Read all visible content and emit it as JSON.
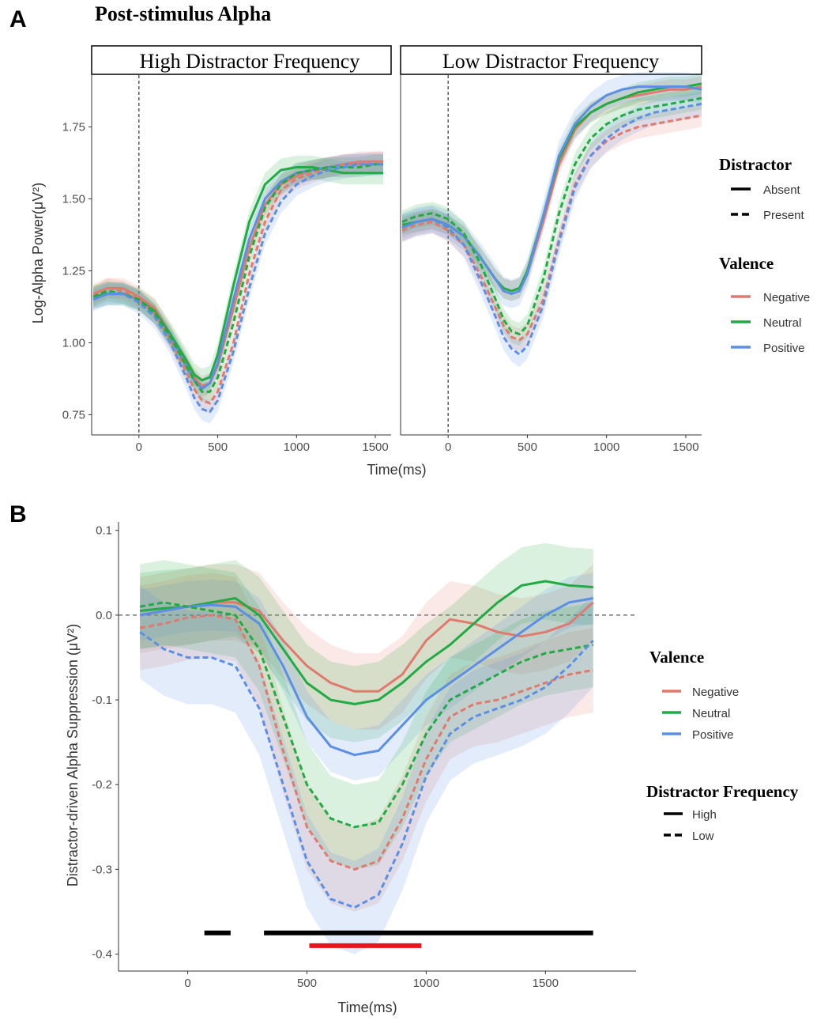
{
  "panel_a": {
    "letter": "A",
    "title": "Post-stimulus Alpha",
    "ylabel": "Log-Alpha Power(μV²)",
    "xlabel": "Time(ms)",
    "facets": [
      "High Distractor Frequency",
      "Low Distractor Frequency"
    ]
  },
  "panel_b": {
    "letter": "B",
    "ylabel": "Distractor-driven Alpha Suppression (μV²)",
    "xlabel": "Time(ms)"
  },
  "legend_a": {
    "distractor_title": "Distractor",
    "distractor_items": [
      "Absent",
      "Present"
    ],
    "valence_title": "Valence",
    "valence_items": [
      "Negative",
      "Neutral",
      "Positive"
    ]
  },
  "legend_b": {
    "valence_title": "Valence",
    "valence_items": [
      "Negative",
      "Neutral",
      "Positive"
    ],
    "freq_title": "Distractor Frequency",
    "freq_items": [
      "High",
      "Low"
    ]
  },
  "colors": {
    "Negative": "#e07a6c",
    "Neutral": "#22aa44",
    "Positive": "#5b8fe6",
    "sig_black": "#000000",
    "sig_red": "#e8151c"
  },
  "chart_data": [
    {
      "type": "line",
      "panel": "A",
      "facet": "High Distractor Frequency",
      "xlim": [
        -300,
        1600
      ],
      "ylim": [
        0.68,
        1.93
      ],
      "xticks": [
        0,
        500,
        1000,
        1500
      ],
      "xtick_labels": [
        "0",
        "500",
        "1000",
        "1500"
      ],
      "yticks": [
        0.75,
        1.0,
        1.25,
        1.5,
        1.75
      ],
      "ytick_labels": [
        "0.75",
        "1.00",
        "1.25",
        "1.50",
        "1.75"
      ],
      "x": [
        -290,
        -200,
        -100,
        0,
        100,
        200,
        300,
        350,
        400,
        450,
        500,
        600,
        700,
        800,
        900,
        1000,
        1100,
        1200,
        1300,
        1400,
        1500,
        1550
      ],
      "series": [
        {
          "name": "Negative",
          "distractor": "Absent",
          "band": 0.035,
          "values": [
            1.17,
            1.19,
            1.19,
            1.16,
            1.12,
            1.03,
            0.93,
            0.88,
            0.85,
            0.86,
            0.92,
            1.12,
            1.33,
            1.48,
            1.55,
            1.58,
            1.6,
            1.61,
            1.62,
            1.63,
            1.63,
            1.63
          ]
        },
        {
          "name": "Neutral",
          "distractor": "Absent",
          "band": 0.04,
          "values": [
            1.16,
            1.17,
            1.17,
            1.15,
            1.11,
            1.03,
            0.94,
            0.89,
            0.87,
            0.88,
            0.96,
            1.2,
            1.42,
            1.55,
            1.6,
            1.61,
            1.61,
            1.6,
            1.59,
            1.59,
            1.59,
            1.59
          ]
        },
        {
          "name": "Positive",
          "distractor": "Absent",
          "band": 0.035,
          "values": [
            1.15,
            1.17,
            1.17,
            1.15,
            1.1,
            1.02,
            0.92,
            0.87,
            0.84,
            0.86,
            0.93,
            1.15,
            1.36,
            1.5,
            1.56,
            1.59,
            1.6,
            1.61,
            1.62,
            1.62,
            1.62,
            1.62
          ]
        },
        {
          "name": "Negative",
          "distractor": "Present",
          "band": 0.035,
          "values": [
            1.16,
            1.19,
            1.18,
            1.15,
            1.1,
            1.01,
            0.9,
            0.84,
            0.8,
            0.79,
            0.83,
            1.0,
            1.24,
            1.42,
            1.53,
            1.57,
            1.59,
            1.61,
            1.62,
            1.62,
            1.63,
            1.63
          ]
        },
        {
          "name": "Neutral",
          "distractor": "Present",
          "band": 0.035,
          "values": [
            1.16,
            1.18,
            1.17,
            1.15,
            1.1,
            1.02,
            0.92,
            0.87,
            0.83,
            0.83,
            0.88,
            1.07,
            1.3,
            1.47,
            1.55,
            1.59,
            1.6,
            1.61,
            1.61,
            1.61,
            1.62,
            1.62
          ]
        },
        {
          "name": "Positive",
          "distractor": "Present",
          "band": 0.04,
          "values": [
            1.15,
            1.17,
            1.17,
            1.14,
            1.09,
            1.0,
            0.88,
            0.81,
            0.77,
            0.76,
            0.8,
            0.97,
            1.19,
            1.38,
            1.49,
            1.55,
            1.58,
            1.6,
            1.61,
            1.62,
            1.62,
            1.62
          ]
        }
      ]
    },
    {
      "type": "line",
      "panel": "A",
      "facet": "Low Distractor Frequency",
      "xlim": [
        -300,
        1600
      ],
      "ylim": [
        0.68,
        1.93
      ],
      "xticks": [
        0,
        500,
        1000,
        1500
      ],
      "xtick_labels": [
        "0",
        "500",
        "1000",
        "1500"
      ],
      "x": [
        -290,
        -200,
        -100,
        0,
        100,
        200,
        300,
        350,
        400,
        450,
        500,
        600,
        700,
        800,
        900,
        1000,
        1100,
        1200,
        1300,
        1400,
        1500,
        1600
      ],
      "series": [
        {
          "name": "Negative",
          "distractor": "Absent",
          "band": 0.035,
          "values": [
            1.4,
            1.42,
            1.43,
            1.41,
            1.37,
            1.3,
            1.22,
            1.19,
            1.18,
            1.19,
            1.24,
            1.42,
            1.62,
            1.74,
            1.8,
            1.83,
            1.85,
            1.86,
            1.87,
            1.88,
            1.88,
            1.89
          ]
        },
        {
          "name": "Neutral",
          "distractor": "Absent",
          "band": 0.035,
          "values": [
            1.41,
            1.42,
            1.43,
            1.41,
            1.37,
            1.3,
            1.22,
            1.19,
            1.18,
            1.19,
            1.25,
            1.44,
            1.64,
            1.75,
            1.8,
            1.83,
            1.85,
            1.87,
            1.88,
            1.89,
            1.89,
            1.9
          ]
        },
        {
          "name": "Positive",
          "distractor": "Absent",
          "band": 0.05,
          "values": [
            1.4,
            1.42,
            1.43,
            1.41,
            1.37,
            1.3,
            1.22,
            1.18,
            1.17,
            1.18,
            1.24,
            1.44,
            1.65,
            1.76,
            1.82,
            1.86,
            1.88,
            1.89,
            1.89,
            1.89,
            1.89,
            1.88
          ]
        },
        {
          "name": "Negative",
          "distractor": "Present",
          "band": 0.04,
          "values": [
            1.39,
            1.41,
            1.42,
            1.39,
            1.34,
            1.24,
            1.12,
            1.06,
            1.02,
            1.01,
            1.03,
            1.15,
            1.36,
            1.55,
            1.65,
            1.7,
            1.73,
            1.75,
            1.76,
            1.77,
            1.78,
            1.79
          ]
        },
        {
          "name": "Neutral",
          "distractor": "Present",
          "band": 0.04,
          "values": [
            1.42,
            1.44,
            1.45,
            1.43,
            1.38,
            1.28,
            1.15,
            1.08,
            1.04,
            1.03,
            1.06,
            1.22,
            1.45,
            1.62,
            1.71,
            1.76,
            1.79,
            1.81,
            1.82,
            1.83,
            1.84,
            1.85
          ]
        },
        {
          "name": "Positive",
          "distractor": "Present",
          "band": 0.045,
          "values": [
            1.4,
            1.42,
            1.43,
            1.4,
            1.34,
            1.22,
            1.09,
            1.02,
            0.98,
            0.96,
            0.99,
            1.13,
            1.35,
            1.54,
            1.65,
            1.71,
            1.75,
            1.78,
            1.8,
            1.81,
            1.82,
            1.83
          ]
        }
      ]
    },
    {
      "type": "line",
      "panel": "B",
      "xlim": [
        -290,
        1880
      ],
      "ylim": [
        -0.42,
        0.11
      ],
      "xticks": [
        0,
        500,
        1000,
        1500
      ],
      "xtick_labels": [
        "0",
        "500",
        "1000",
        "1500"
      ],
      "yticks": [
        -0.4,
        -0.3,
        -0.2,
        -0.1,
        0.0,
        0.1
      ],
      "ytick_labels": [
        "-0.4",
        "-0.3",
        "-0.2",
        "-0.1",
        "0.0",
        "0.1"
      ],
      "x": [
        -200,
        -100,
        0,
        100,
        200,
        300,
        400,
        500,
        600,
        700,
        800,
        900,
        1000,
        1100,
        1200,
        1300,
        1400,
        1500,
        1600,
        1700
      ],
      "series": [
        {
          "name": "Negative",
          "frequency": "High",
          "band": 0.045,
          "values": [
            0.0,
            0.005,
            0.01,
            0.015,
            0.015,
            0.005,
            -0.03,
            -0.06,
            -0.08,
            -0.09,
            -0.09,
            -0.07,
            -0.03,
            -0.005,
            -0.01,
            -0.02,
            -0.025,
            -0.02,
            -0.01,
            0.015
          ]
        },
        {
          "name": "Neutral",
          "frequency": "High",
          "band": 0.045,
          "values": [
            0.005,
            0.008,
            0.01,
            0.015,
            0.02,
            0.0,
            -0.04,
            -0.08,
            -0.1,
            -0.105,
            -0.1,
            -0.08,
            -0.055,
            -0.035,
            -0.01,
            0.015,
            0.035,
            0.04,
            0.035,
            0.033
          ]
        },
        {
          "name": "Positive",
          "frequency": "High",
          "band": 0.03,
          "values": [
            0.0,
            0.005,
            0.01,
            0.012,
            0.01,
            -0.01,
            -0.06,
            -0.12,
            -0.155,
            -0.165,
            -0.16,
            -0.13,
            -0.1,
            -0.08,
            -0.06,
            -0.04,
            -0.02,
            0.0,
            0.015,
            0.02
          ]
        },
        {
          "name": "Negative",
          "frequency": "Low",
          "band": 0.05,
          "values": [
            -0.015,
            -0.01,
            -0.003,
            0.0,
            -0.005,
            -0.06,
            -0.16,
            -0.25,
            -0.29,
            -0.3,
            -0.29,
            -0.24,
            -0.17,
            -0.12,
            -0.105,
            -0.1,
            -0.09,
            -0.08,
            -0.07,
            -0.065
          ]
        },
        {
          "name": "Neutral",
          "frequency": "Low",
          "band": 0.05,
          "values": [
            0.01,
            0.015,
            0.01,
            0.005,
            0.0,
            -0.04,
            -0.12,
            -0.2,
            -0.24,
            -0.25,
            -0.245,
            -0.2,
            -0.14,
            -0.1,
            -0.085,
            -0.07,
            -0.055,
            -0.045,
            -0.04,
            -0.035
          ]
        },
        {
          "name": "Positive",
          "frequency": "Low",
          "band": 0.055,
          "values": [
            -0.02,
            -0.04,
            -0.05,
            -0.05,
            -0.06,
            -0.11,
            -0.2,
            -0.29,
            -0.335,
            -0.345,
            -0.33,
            -0.27,
            -0.19,
            -0.14,
            -0.12,
            -0.11,
            -0.1,
            -0.085,
            -0.06,
            -0.03
          ]
        }
      ],
      "significance_bars": [
        {
          "color": "sig_black",
          "y": -0.375,
          "start": 70,
          "end": 180
        },
        {
          "color": "sig_black",
          "y": -0.375,
          "start": 320,
          "end": 1700
        },
        {
          "color": "sig_red",
          "y": -0.39,
          "start": 510,
          "end": 980
        }
      ]
    }
  ]
}
